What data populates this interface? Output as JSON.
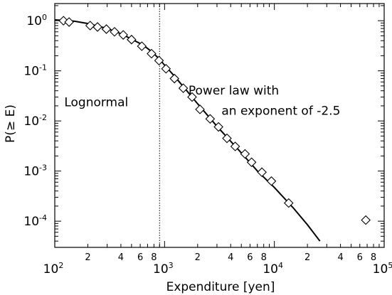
{
  "chart_data": {
    "type": "scatter",
    "xlabel": "Expenditure [yen]",
    "ylabel": "P(≥ E)",
    "xscale": "log",
    "yscale": "log",
    "xlim": [
      100,
      100000
    ],
    "ylim": [
      3e-05,
      2.2
    ],
    "x_major_ticks": [
      {
        "value": 100,
        "base": "10",
        "exp": "2"
      },
      {
        "value": 1000,
        "base": "10",
        "exp": "3"
      },
      {
        "value": 10000,
        "base": "10",
        "exp": "4"
      },
      {
        "value": 100000,
        "base": "10",
        "exp": "5"
      }
    ],
    "x_minor_ticks": [
      {
        "value": 200,
        "label": "2"
      },
      {
        "value": 400,
        "label": "4"
      },
      {
        "value": 600,
        "label": "6"
      },
      {
        "value": 800,
        "label": "8"
      },
      {
        "value": 2000,
        "label": "2"
      },
      {
        "value": 4000,
        "label": "4"
      },
      {
        "value": 6000,
        "label": "6"
      },
      {
        "value": 8000,
        "label": "8"
      },
      {
        "value": 20000,
        "label": "2"
      },
      {
        "value": 40000,
        "label": "4"
      },
      {
        "value": 60000,
        "label": "6"
      },
      {
        "value": 80000,
        "label": "8"
      }
    ],
    "y_major_ticks": [
      {
        "value": 1,
        "base": "10",
        "exp": "0"
      },
      {
        "value": 0.1,
        "base": "10",
        "exp": "-1"
      },
      {
        "value": 0.01,
        "base": "10",
        "exp": "-2"
      },
      {
        "value": 0.001,
        "base": "10",
        "exp": "-3"
      },
      {
        "value": 0.0001,
        "base": "10",
        "exp": "-4"
      }
    ],
    "series": [
      {
        "marker": "diamond",
        "points": [
          [
            120,
            1.0
          ],
          [
            135,
            0.94
          ],
          [
            210,
            0.8
          ],
          [
            245,
            0.75
          ],
          [
            295,
            0.68
          ],
          [
            350,
            0.6
          ],
          [
            420,
            0.52
          ],
          [
            500,
            0.42
          ],
          [
            620,
            0.31
          ],
          [
            760,
            0.22
          ],
          [
            890,
            0.16
          ],
          [
            1030,
            0.11
          ],
          [
            1230,
            0.07
          ],
          [
            1480,
            0.045
          ],
          [
            1780,
            0.03
          ],
          [
            2100,
            0.017
          ],
          [
            2600,
            0.011
          ],
          [
            3100,
            0.0076
          ],
          [
            3700,
            0.0045
          ],
          [
            4400,
            0.0031
          ],
          [
            5400,
            0.0022
          ],
          [
            6200,
            0.0015
          ],
          [
            7700,
            0.00095
          ],
          [
            9400,
            0.00063
          ],
          [
            13500,
            0.00023
          ],
          [
            68000,
            0.000105
          ]
        ]
      },
      {
        "style": "solid-line",
        "points": [
          [
            100,
            1.04
          ],
          [
            150,
            0.98
          ],
          [
            200,
            0.88
          ],
          [
            300,
            0.7
          ],
          [
            400,
            0.55
          ],
          [
            500,
            0.43
          ],
          [
            600,
            0.35
          ],
          [
            700,
            0.28
          ],
          [
            800,
            0.22
          ],
          [
            900,
            0.17
          ],
          [
            1000,
            0.13
          ],
          [
            1200,
            0.083
          ],
          [
            1500,
            0.047
          ],
          [
            2000,
            0.022
          ],
          [
            3000,
            0.0078
          ],
          [
            5000,
            0.0023
          ],
          [
            7000,
            0.001
          ],
          [
            10000,
            0.00047
          ],
          [
            15000,
            0.00018
          ],
          [
            20000,
            8.5e-05
          ],
          [
            26000,
            4e-05
          ]
        ]
      }
    ],
    "reference_line": {
      "x": 900,
      "style": "dotted"
    },
    "annotations": [
      {
        "id": "lognormal",
        "text": "Lognormal",
        "x": 122,
        "y": 0.0195
      },
      {
        "id": "powerlaw1",
        "text": "Power law with",
        "x": 1650,
        "y": 0.0335
      },
      {
        "id": "powerlaw2",
        "text": "an exponent of -2.5",
        "x": 3300,
        "y": 0.0133
      }
    ]
  }
}
